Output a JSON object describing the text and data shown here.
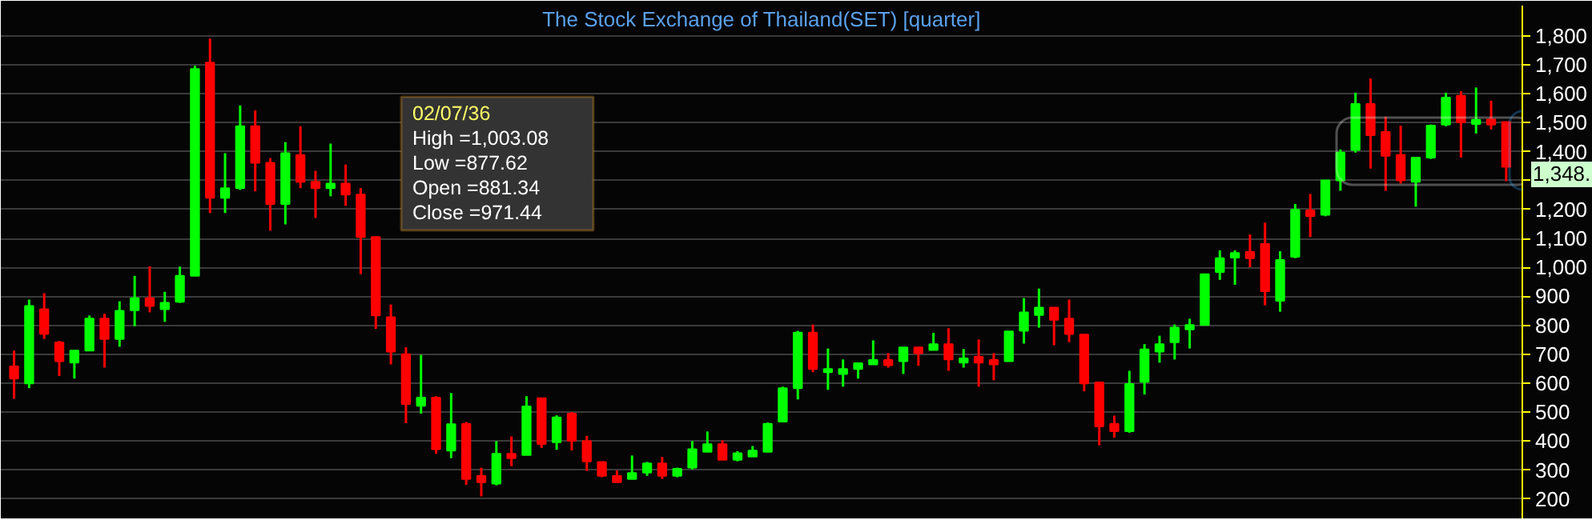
{
  "chart_data": {
    "type": "candlestick",
    "title": "The Stock Exchange of Thailand(SET) [quarter]",
    "categories": [
      null,
      null,
      null,
      null,
      null,
      null,
      null,
      null,
      null,
      null,
      null,
      null,
      null,
      null,
      null,
      null,
      null,
      null,
      null,
      null,
      null,
      null,
      null,
      null,
      null,
      null,
      null,
      null,
      null,
      null,
      null,
      null,
      null,
      null,
      null,
      null,
      null,
      null,
      null,
      null,
      null,
      null,
      null,
      null,
      null,
      null,
      null,
      null,
      null,
      null,
      null,
      null,
      null,
      null,
      null,
      null,
      null,
      null,
      null,
      null,
      null,
      null,
      null,
      null,
      null,
      null,
      null,
      null,
      null,
      null,
      null,
      null,
      null,
      null,
      null,
      null,
      null,
      null,
      null,
      null,
      null,
      null,
      null,
      null,
      null,
      null,
      null,
      null,
      null,
      null,
      null,
      null,
      null,
      null,
      null,
      null,
      null,
      null,
      null,
      null
    ],
    "ohlc": [
      [
        658,
        713,
        546,
        616
      ],
      [
        599,
        889,
        583,
        867
      ],
      [
        856,
        911,
        753,
        770
      ],
      [
        741,
        746,
        625,
        676
      ],
      [
        671,
        713,
        616,
        713
      ],
      [
        713,
        834,
        713,
        823
      ],
      [
        823,
        840,
        654,
        753
      ],
      [
        753,
        883,
        726,
        850
      ],
      [
        852,
        971,
        797,
        894
      ],
      [
        894,
        1004,
        845,
        867
      ],
      [
        856,
        916,
        812,
        878
      ],
      [
        881.34,
        1003.08,
        877.62,
        971.44
      ],
      [
        971,
        1697,
        971,
        1686
      ],
      [
        1708,
        1791,
        1188,
        1241
      ],
      [
        1241,
        1395,
        1188,
        1274
      ],
      [
        1274,
        1560,
        1268,
        1488
      ],
      [
        1488,
        1543,
        1263,
        1362
      ],
      [
        1362,
        1378,
        1127,
        1219
      ],
      [
        1219,
        1433,
        1149,
        1395
      ],
      [
        1389,
        1488,
        1274,
        1296
      ],
      [
        1296,
        1334,
        1171,
        1274
      ],
      [
        1274,
        1428,
        1246,
        1290
      ],
      [
        1290,
        1356,
        1213,
        1252
      ],
      [
        1252,
        1274,
        977,
        1105
      ],
      [
        1105,
        1105,
        788,
        834
      ],
      [
        828,
        872,
        665,
        709
      ],
      [
        700,
        724,
        462,
        528
      ],
      [
        522,
        698,
        495,
        550
      ],
      [
        550,
        555,
        356,
        372
      ],
      [
        367,
        566,
        341,
        458
      ],
      [
        460,
        466,
        249,
        269
      ],
      [
        279,
        308,
        209,
        258
      ],
      [
        253,
        400,
        247,
        356
      ],
      [
        356,
        416,
        313,
        341
      ],
      [
        352,
        555,
        352,
        520
      ],
      [
        548,
        548,
        376,
        390
      ],
      [
        396,
        489,
        370,
        482
      ],
      [
        495,
        500,
        368,
        401
      ],
      [
        400,
        418,
        297,
        330
      ],
      [
        328,
        328,
        275,
        280
      ],
      [
        279,
        299,
        258,
        258
      ],
      [
        269,
        350,
        269,
        290
      ],
      [
        291,
        328,
        280,
        323
      ],
      [
        323,
        345,
        269,
        280
      ],
      [
        280,
        308,
        275,
        304
      ],
      [
        308,
        400,
        302,
        372
      ],
      [
        363,
        433,
        363,
        389
      ],
      [
        389,
        403,
        335,
        335
      ],
      [
        335,
        365,
        330,
        358
      ],
      [
        346,
        383,
        346,
        367
      ],
      [
        363,
        464,
        363,
        460
      ],
      [
        467,
        588,
        467,
        583
      ],
      [
        583,
        781,
        544,
        775
      ],
      [
        775,
        803,
        638,
        649
      ],
      [
        638,
        720,
        577,
        649
      ],
      [
        632,
        682,
        588,
        649
      ],
      [
        649,
        671,
        616,
        669
      ],
      [
        665,
        748,
        665,
        680
      ],
      [
        680,
        704,
        654,
        662
      ],
      [
        676,
        724,
        632,
        724
      ],
      [
        724,
        724,
        660,
        704
      ],
      [
        715,
        774,
        715,
        735
      ],
      [
        735,
        790,
        643,
        682
      ],
      [
        671,
        718,
        654,
        686
      ],
      [
        691,
        751,
        588,
        671
      ],
      [
        680,
        704,
        610,
        665
      ],
      [
        676,
        779,
        676,
        779
      ],
      [
        781,
        894,
        737,
        845
      ],
      [
        836,
        927,
        792,
        861
      ],
      [
        861,
        861,
        731,
        819
      ],
      [
        823,
        889,
        742,
        770
      ],
      [
        768,
        768,
        572,
        599
      ],
      [
        603,
        603,
        385,
        451
      ],
      [
        460,
        488,
        412,
        434
      ],
      [
        434,
        643,
        429,
        597
      ],
      [
        605,
        735,
        561,
        717
      ],
      [
        709,
        764,
        671,
        735
      ],
      [
        742,
        803,
        682,
        792
      ],
      [
        786,
        823,
        720,
        801
      ],
      [
        801,
        977,
        801,
        977
      ],
      [
        984,
        1059,
        957,
        1032
      ],
      [
        1034,
        1059,
        940,
        1050
      ],
      [
        1054,
        1114,
        1001,
        1032
      ],
      [
        1081,
        1155,
        869,
        918
      ],
      [
        885,
        1056,
        847,
        1026
      ],
      [
        1037,
        1219,
        1032,
        1199
      ],
      [
        1197,
        1254,
        1105,
        1177
      ],
      [
        1182,
        1301,
        1177,
        1301
      ],
      [
        1301,
        1408,
        1265,
        1397
      ],
      [
        1406,
        1604,
        1397,
        1565
      ],
      [
        1565,
        1653,
        1342,
        1457
      ],
      [
        1468,
        1521,
        1265,
        1386
      ],
      [
        1389,
        1490,
        1290,
        1301
      ],
      [
        1296,
        1380,
        1210,
        1380
      ],
      [
        1380,
        1494,
        1375,
        1490
      ],
      [
        1494,
        1604,
        1488,
        1587
      ],
      [
        1593,
        1609,
        1380,
        1501
      ],
      [
        1496,
        1622,
        1463,
        1510
      ],
      [
        1512,
        1576,
        1477,
        1494
      ],
      [
        1503,
        1503,
        1298,
        1348
      ]
    ],
    "colors": [
      "#ff0000",
      "#00ff00",
      "#ff0000",
      "#ff0000",
      "#00ff00",
      "#00ff00",
      "#ff0000",
      "#00ff00",
      "#00ff00",
      "#ff0000",
      "#00ff00",
      "#00ff00",
      "#00ff00",
      "#ff0000",
      "#00ff00",
      "#00ff00",
      "#ff0000",
      "#ff0000",
      "#00ff00",
      "#ff0000",
      "#ff0000",
      "#00ff00",
      "#ff0000",
      "#ff0000",
      "#ff0000",
      "#ff0000",
      "#ff0000",
      "#00ff00",
      "#ff0000",
      "#00ff00",
      "#ff0000",
      "#ff0000",
      "#00ff00",
      "#ff0000",
      "#00ff00",
      "#ff0000",
      "#00ff00",
      "#ff0000",
      "#ff0000",
      "#ff0000",
      "#ff0000",
      "#00ff00",
      "#00ff00",
      "#ff0000",
      "#00ff00",
      "#00ff00",
      "#00ff00",
      "#ff0000",
      "#00ff00",
      "#00ff00",
      "#00ff00",
      "#00ff00",
      "#00ff00",
      "#ff0000",
      "#00ff00",
      "#00ff00",
      "#00ff00",
      "#00ff00",
      "#ff0000",
      "#00ff00",
      "#ff0000",
      "#00ff00",
      "#ff0000",
      "#00ff00",
      "#ff0000",
      "#ff0000",
      "#00ff00",
      "#00ff00",
      "#00ff00",
      "#ff0000",
      "#ff0000",
      "#ff0000",
      "#ff0000",
      "#ff0000",
      "#00ff00",
      "#00ff00",
      "#00ff00",
      "#00ff00",
      "#00ff00",
      "#00ff00",
      "#00ff00",
      "#00ff00",
      "#ff0000",
      "#ff0000",
      "#00ff00",
      "#00ff00",
      "#ff0000",
      "#00ff00",
      "#00ff00",
      "#00ff00",
      "#ff0000",
      "#ff0000",
      "#ff0000",
      "#00ff00",
      "#00ff00",
      "#00ff00",
      "#ff0000",
      "#00ff00",
      "#ff0000",
      "#ff0000"
    ],
    "ylim": [
      130,
      1905
    ],
    "yticks": [
      200,
      300,
      400,
      500,
      600,
      700,
      800,
      900,
      {
        "value": 1000,
        "label": "1,000"
      },
      {
        "value": 1100,
        "label": "1,100"
      },
      {
        "value": 1200,
        "label": "1,200"
      },
      {
        "value": 1300,
        "label": null
      },
      {
        "value": 1400,
        "label": "1,400"
      },
      {
        "value": 1500,
        "label": "1,500"
      },
      {
        "value": 1600,
        "label": "1,600"
      },
      {
        "value": 1700,
        "label": "1,700"
      },
      {
        "value": 1800,
        "label": "1,800"
      }
    ],
    "grid": "y",
    "annotations": [
      "02/07/36",
      "High =1,003.08",
      "Low =877.62",
      "Open =881.34",
      "Close =971.44",
      "1,348."
    ]
  }
}
